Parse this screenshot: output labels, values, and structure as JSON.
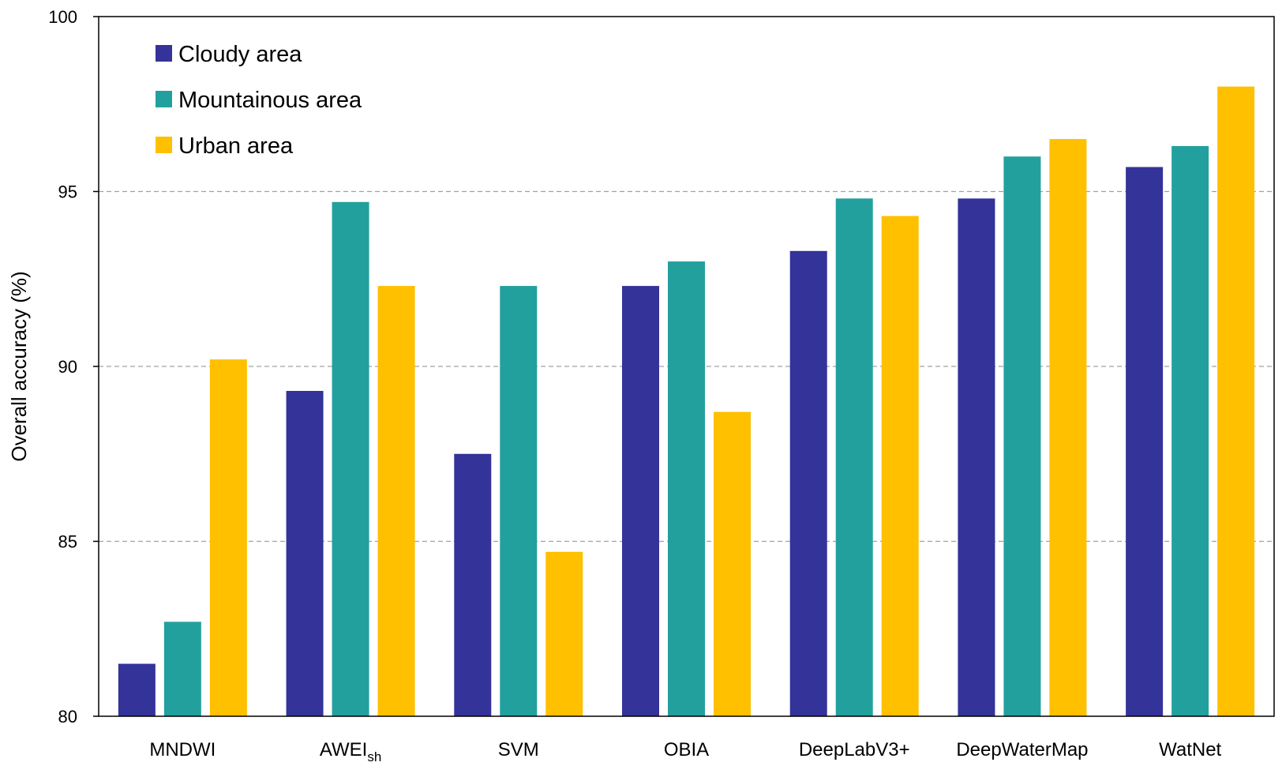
{
  "chart_data": {
    "type": "bar",
    "ylabel": "Overall accuracy (%)",
    "ylim": [
      80,
      100
    ],
    "yticks": [
      80,
      85,
      90,
      95,
      100
    ],
    "grid": "horizontal dashed at 85, 90, 95",
    "legend_position": "top-left",
    "categories": [
      "MNDWI",
      "AWEIsh",
      "SVM",
      "OBIA",
      "DeepLabV3+",
      "DeepWaterMap",
      "WatNet"
    ],
    "category_labels": [
      {
        "main": "MNDWI",
        "sub": ""
      },
      {
        "main": "AWEI",
        "sub": "sh"
      },
      {
        "main": "SVM",
        "sub": ""
      },
      {
        "main": "OBIA",
        "sub": ""
      },
      {
        "main": "DeepLabV3+",
        "sub": ""
      },
      {
        "main": "DeepWaterMap",
        "sub": ""
      },
      {
        "main": "WatNet",
        "sub": ""
      }
    ],
    "series": [
      {
        "name": "Cloudy area",
        "color": "#333399",
        "values": [
          81.5,
          89.3,
          87.5,
          92.3,
          93.3,
          94.8,
          95.7
        ]
      },
      {
        "name": "Mountainous area",
        "color": "#22A09E",
        "values": [
          82.7,
          94.7,
          92.3,
          93.0,
          94.8,
          96.0,
          96.3
        ]
      },
      {
        "name": "Urban area",
        "color": "#FFC000",
        "values": [
          90.2,
          92.3,
          84.7,
          88.7,
          94.3,
          96.5,
          98.0
        ]
      }
    ]
  }
}
